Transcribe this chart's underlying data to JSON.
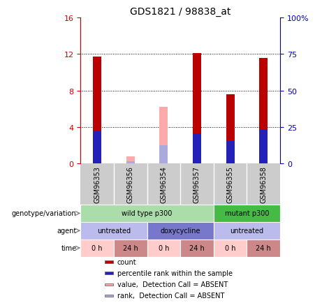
{
  "title": "GDS1821 / 98838_at",
  "samples": [
    "GSM96353",
    "GSM96356",
    "GSM96354",
    "GSM96357",
    "GSM96355",
    "GSM96358"
  ],
  "bar_data": {
    "GSM96353": {
      "count": 11.7,
      "rank": 3.5,
      "absent_value": null,
      "absent_rank": null
    },
    "GSM96356": {
      "count": null,
      "rank": null,
      "absent_value": 0.8,
      "absent_rank": 0.25
    },
    "GSM96354": {
      "count": null,
      "rank": null,
      "absent_value": 6.2,
      "absent_rank": 2.0
    },
    "GSM96357": {
      "count": 12.1,
      "rank": 3.3,
      "absent_value": null,
      "absent_rank": null
    },
    "GSM96355": {
      "count": 7.6,
      "rank": 2.5,
      "absent_value": null,
      "absent_rank": null
    },
    "GSM96358": {
      "count": 11.6,
      "rank": 3.7,
      "absent_value": null,
      "absent_rank": null
    }
  },
  "ylim_left": [
    0,
    16
  ],
  "ylim_right": [
    0,
    100
  ],
  "yticks_left": [
    0,
    4,
    8,
    12,
    16
  ],
  "yticks_right": [
    0,
    25,
    50,
    75,
    100
  ],
  "left_axis_color": "#cc0000",
  "right_axis_color": "#0000bb",
  "bar_color_count": "#bb0000",
  "bar_color_rank": "#2222bb",
  "bar_color_absent_value": "#ffaaaa",
  "bar_color_absent_rank": "#aaaadd",
  "bar_width": 0.25,
  "genotype_row": [
    {
      "label": "wild type p300",
      "span": [
        0,
        4
      ],
      "color": "#aaddaa"
    },
    {
      "label": "mutant p300",
      "span": [
        4,
        6
      ],
      "color": "#44bb44"
    }
  ],
  "agent_row": [
    {
      "label": "untreated",
      "span": [
        0,
        2
      ],
      "color": "#bbbbee"
    },
    {
      "label": "doxycycline",
      "span": [
        2,
        4
      ],
      "color": "#7777cc"
    },
    {
      "label": "untreated",
      "span": [
        4,
        6
      ],
      "color": "#bbbbee"
    }
  ],
  "time_row": [
    {
      "label": "0 h",
      "span": [
        0,
        1
      ],
      "color": "#ffcccc"
    },
    {
      "label": "24 h",
      "span": [
        1,
        2
      ],
      "color": "#cc8888"
    },
    {
      "label": "0 h",
      "span": [
        2,
        3
      ],
      "color": "#ffcccc"
    },
    {
      "label": "24 h",
      "span": [
        3,
        4
      ],
      "color": "#cc8888"
    },
    {
      "label": "0 h",
      "span": [
        4,
        5
      ],
      "color": "#ffcccc"
    },
    {
      "label": "24 h",
      "span": [
        5,
        6
      ],
      "color": "#cc8888"
    }
  ],
  "row_labels": [
    "genotype/variation",
    "agent",
    "time"
  ],
  "legend_items": [
    {
      "color": "#bb0000",
      "label": "count"
    },
    {
      "color": "#2222bb",
      "label": "percentile rank within the sample"
    },
    {
      "color": "#ffaaaa",
      "label": "value,  Detection Call = ABSENT"
    },
    {
      "color": "#aaaadd",
      "label": "rank,  Detection Call = ABSENT"
    }
  ]
}
